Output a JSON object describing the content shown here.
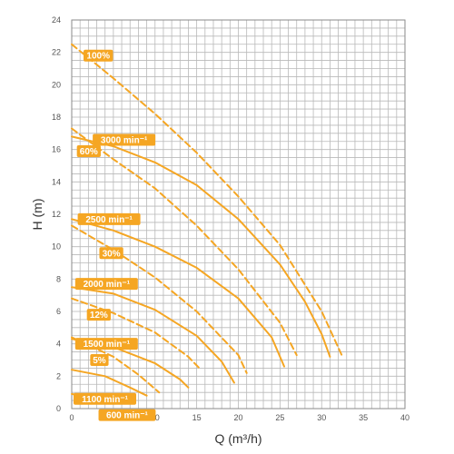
{
  "chart_data": {
    "type": "line",
    "title": "",
    "xlabel": "Q (m³/h)",
    "ylabel": "H (m)",
    "xlim": [
      0,
      40
    ],
    "ylim": [
      0,
      24
    ],
    "x_ticks": [
      0,
      5,
      10,
      15,
      20,
      25,
      30,
      35,
      40
    ],
    "y_ticks": [
      0,
      2,
      4,
      6,
      8,
      10,
      12,
      14,
      16,
      18,
      20,
      22,
      24
    ],
    "grid": true,
    "curve_color": "#f5a623",
    "series": [
      {
        "label": "3000 min⁻¹",
        "line": "solid",
        "x": [
          0,
          5,
          10,
          15,
          20,
          25,
          28,
          30,
          31
        ],
        "y": [
          16.8,
          16.2,
          15.2,
          13.8,
          11.7,
          8.9,
          6.6,
          4.6,
          3.2
        ]
      },
      {
        "label": "2500 min⁻¹",
        "line": "solid",
        "x": [
          0,
          5,
          10,
          15,
          20,
          24,
          25.5
        ],
        "y": [
          11.7,
          11.0,
          10.0,
          8.7,
          6.8,
          4.4,
          2.6
        ]
      },
      {
        "label": "2000 min⁻¹",
        "line": "solid",
        "x": [
          0,
          5,
          10,
          15,
          18,
          19.5
        ],
        "y": [
          7.5,
          7.1,
          6.1,
          4.5,
          2.9,
          1.6
        ]
      },
      {
        "label": "1500 min⁻¹",
        "line": "solid",
        "x": [
          0,
          5,
          10,
          13,
          14
        ],
        "y": [
          4.3,
          3.8,
          2.8,
          1.8,
          1.3
        ]
      },
      {
        "label": "1100 min⁻¹",
        "line": "solid",
        "x": [
          0,
          4,
          7,
          9
        ],
        "y": [
          2.4,
          2.0,
          1.3,
          0.8
        ]
      },
      {
        "label": "600 min⁻¹",
        "line": "solid",
        "x": [
          0,
          3,
          5
        ],
        "y": [
          0.9,
          0.6,
          0.4
        ]
      },
      {
        "label": "100%",
        "line": "dashed",
        "x": [
          0,
          5,
          10,
          15,
          20,
          25,
          30,
          32.5
        ],
        "y": [
          22.5,
          20.4,
          18.2,
          15.8,
          13.1,
          10.1,
          6.0,
          3.2
        ]
      },
      {
        "label": "60%",
        "line": "dashed",
        "x": [
          0,
          5,
          10,
          15,
          20,
          25,
          27
        ],
        "y": [
          17.3,
          15.4,
          13.6,
          11.3,
          8.6,
          5.3,
          3.3
        ]
      },
      {
        "label": "30%",
        "line": "dashed",
        "x": [
          0,
          5,
          10,
          15,
          20,
          21
        ],
        "y": [
          11.3,
          9.8,
          8.1,
          6.0,
          3.3,
          2.2
        ]
      },
      {
        "label": "12%",
        "line": "dashed",
        "x": [
          0,
          5,
          10,
          14,
          15.5
        ],
        "y": [
          6.8,
          5.9,
          4.7,
          3.2,
          2.4
        ]
      },
      {
        "label": "5%",
        "line": "dashed",
        "x": [
          0,
          5,
          8,
          10.5
        ],
        "y": [
          4.4,
          3.2,
          2.1,
          1.0
        ]
      }
    ],
    "annotations": [
      {
        "text": "100%",
        "x": 1.2,
        "y": 21.8
      },
      {
        "text": "3000 min⁻¹",
        "x": 2.3,
        "y": 16.6
      },
      {
        "text": "60%",
        "x": 0.4,
        "y": 15.9
      },
      {
        "text": "2500 min⁻¹",
        "x": 0.5,
        "y": 11.7
      },
      {
        "text": "30%",
        "x": 3.1,
        "y": 9.6
      },
      {
        "text": "2000 min⁻¹",
        "x": 0.2,
        "y": 7.7
      },
      {
        "text": "12%",
        "x": 1.6,
        "y": 5.8
      },
      {
        "text": "1500 min⁻¹",
        "x": 0.2,
        "y": 4.0
      },
      {
        "text": "5%",
        "x": 2.0,
        "y": 3.0
      },
      {
        "text": "1100 min⁻¹",
        "x": 0.0,
        "y": 0.6
      },
      {
        "text": "600 min⁻¹",
        "x": 3.0,
        "y": -0.4
      }
    ]
  }
}
